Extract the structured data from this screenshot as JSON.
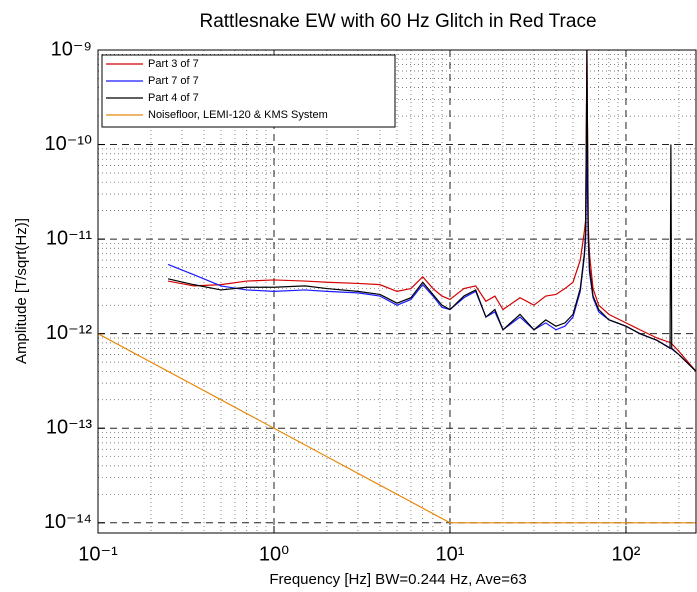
{
  "chart_data": {
    "type": "line",
    "title": "Rattlesnake EW with 60 Hz Glitch in Red Trace",
    "xlabel": "Frequency [Hz]  BW=0.244 Hz, Ave=63",
    "ylabel": "Amplitude [T/sqrt(Hz)]",
    "xscale": "log",
    "yscale": "log",
    "grid": true,
    "legend": "upper left",
    "xlim": [
      0.1,
      250
    ],
    "ylim": [
      7.8e-15,
      1e-09
    ],
    "xticks": [
      {
        "value": 0.1,
        "label": "10⁻¹"
      },
      {
        "value": 1,
        "label": "10⁰"
      },
      {
        "value": 10,
        "label": "10¹"
      },
      {
        "value": 100,
        "label": "10²"
      }
    ],
    "yticks": [
      {
        "value": 1e-14,
        "label": "10⁻¹⁴"
      },
      {
        "value": 1e-13,
        "label": "10⁻¹³"
      },
      {
        "value": 1e-12,
        "label": "10⁻¹²"
      },
      {
        "value": 1e-11,
        "label": "10⁻¹¹"
      },
      {
        "value": 1e-10,
        "label": "10⁻¹⁰"
      },
      {
        "value": 1e-09,
        "label": "10⁻⁹"
      }
    ],
    "xminorticks": [
      0.2,
      0.3,
      0.4,
      0.5,
      0.6,
      0.7,
      0.8,
      0.9,
      2,
      3,
      4,
      5,
      6,
      7,
      8,
      9,
      20,
      30,
      40,
      50,
      60,
      70,
      80,
      90,
      200
    ],
    "yminorticks": [
      2e-14,
      3e-14,
      4e-14,
      5e-14,
      6e-14,
      7e-14,
      8e-14,
      9e-14,
      2e-13,
      3e-13,
      4e-13,
      5e-13,
      6e-13,
      7e-13,
      8e-13,
      9e-13,
      2e-12,
      3e-12,
      4e-12,
      5e-12,
      6e-12,
      7e-12,
      8e-12,
      9e-12,
      2e-11,
      3e-11,
      4e-11,
      5e-11,
      6e-11,
      7e-11,
      8e-11,
      9e-11,
      2e-10,
      3e-10,
      4e-10,
      5e-10,
      6e-10,
      7e-10,
      8e-10,
      9e-10
    ],
    "series": [
      {
        "name": "Part 3 of 7",
        "color": "#d40000",
        "x": [
          0.25,
          0.35,
          0.5,
          0.7,
          1,
          1.5,
          2,
          3,
          4,
          5,
          6,
          7,
          8,
          9,
          10,
          12,
          14,
          16,
          18,
          20,
          25,
          30,
          35,
          40,
          45,
          50,
          55,
          58,
          59,
          60,
          61,
          62,
          65,
          70,
          80,
          100,
          120,
          150,
          180,
          200,
          250
        ],
        "values": [
          3.6e-12,
          3.2e-12,
          3.3e-12,
          3.6e-12,
          3.7e-12,
          3.6e-12,
          3.5e-12,
          3.4e-12,
          3.3e-12,
          2.8e-12,
          3e-12,
          4e-12,
          3e-12,
          2.5e-12,
          2.3e-12,
          3e-12,
          3.2e-12,
          2.2e-12,
          2.5e-12,
          1.8e-12,
          2.4e-12,
          2e-12,
          2.5e-12,
          2.6e-12,
          3e-12,
          3.5e-12,
          6e-12,
          1.2e-11,
          1.6e-11,
          1e-09,
          1.5e-11,
          7e-12,
          3e-12,
          2e-12,
          1.6e-12,
          1.3e-12,
          1.1e-12,
          9e-13,
          8e-13,
          6.5e-13,
          4e-13
        ]
      },
      {
        "name": "Part 7 of 7",
        "color": "#1a1aff",
        "x": [
          0.25,
          0.35,
          0.5,
          0.7,
          1,
          1.5,
          2,
          3,
          4,
          5,
          6,
          7,
          8,
          9,
          10,
          12,
          14,
          16,
          18,
          20,
          25,
          30,
          35,
          40,
          45,
          50,
          55,
          58,
          59,
          60,
          61,
          62,
          65,
          70,
          80,
          100,
          120,
          150,
          180,
          200,
          250
        ],
        "values": [
          5.4e-12,
          4.2e-12,
          3.2e-12,
          2.9e-12,
          2.8e-12,
          2.9e-12,
          2.8e-12,
          2.7e-12,
          2.5e-12,
          2e-12,
          2.3e-12,
          3.3e-12,
          2.5e-12,
          1.9e-12,
          1.8e-12,
          2.4e-12,
          2.8e-12,
          1.5e-12,
          1.7e-12,
          1.1e-12,
          1.5e-12,
          1.1e-12,
          1.3e-12,
          1.1e-12,
          1.2e-12,
          1.5e-12,
          2.8e-12,
          6.5e-12,
          1e-11,
          1e-10,
          1e-11,
          4.5e-12,
          2.4e-12,
          1.7e-12,
          1.4e-12,
          1.2e-12,
          1e-12,
          8.5e-13,
          7e-13,
          6e-13,
          4e-13
        ]
      },
      {
        "name": "Part 4 of 7",
        "color": "#000000",
        "x": [
          0.25,
          0.35,
          0.5,
          0.7,
          1,
          1.5,
          2,
          3,
          4,
          5,
          6,
          7,
          8,
          9,
          10,
          12,
          14,
          16,
          18,
          20,
          25,
          30,
          35,
          40,
          45,
          50,
          55,
          58,
          59,
          60,
          61,
          62,
          65,
          70,
          80,
          100,
          120,
          150,
          178,
          180,
          182,
          200,
          250
        ],
        "values": [
          3.8e-12,
          3.3e-12,
          2.9e-12,
          3.1e-12,
          3.1e-12,
          3.2e-12,
          3e-12,
          2.8e-12,
          2.6e-12,
          2.1e-12,
          2.4e-12,
          3.5e-12,
          2.6e-12,
          2e-12,
          1.8e-12,
          2.5e-12,
          2.9e-12,
          1.5e-12,
          1.8e-12,
          1.1e-12,
          1.6e-12,
          1.1e-12,
          1.4e-12,
          1.2e-12,
          1.3e-12,
          1.6e-12,
          3e-12,
          7e-12,
          1.2e-11,
          1e-09,
          1.2e-11,
          5e-12,
          2.5e-12,
          1.8e-12,
          1.4e-12,
          1.2e-12,
          1e-12,
          8.5e-13,
          7e-13,
          1e-10,
          7e-13,
          6e-13,
          4e-13
        ]
      },
      {
        "name": "Noisefloor, LEMI-120 & KMS System",
        "color": "#e8880a",
        "x": [
          0.1,
          10,
          250
        ],
        "values": [
          1e-12,
          1e-14,
          1e-14
        ]
      }
    ]
  }
}
